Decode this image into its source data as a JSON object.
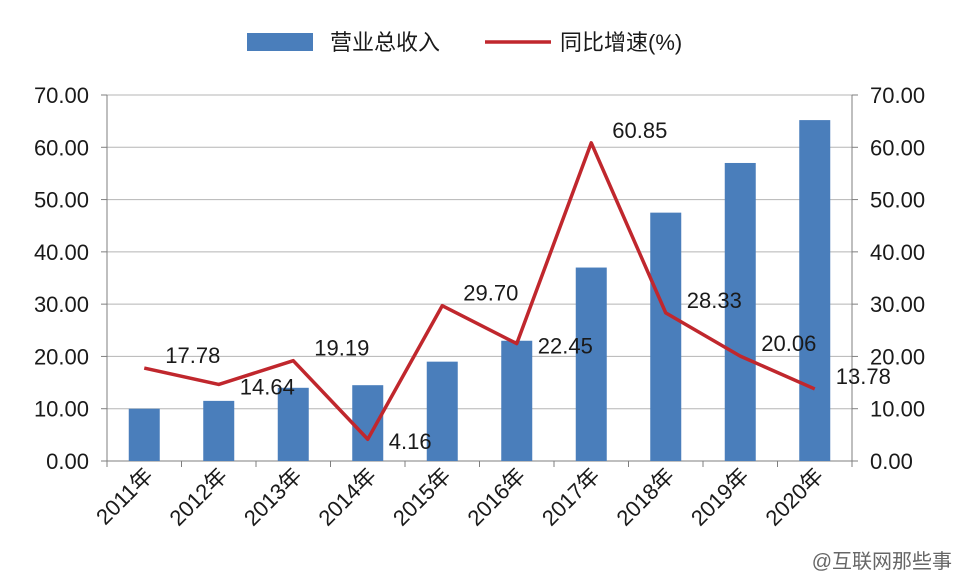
{
  "chart_data": {
    "type": "bar+line",
    "categories": [
      "2011年",
      "2012年",
      "2013年",
      "2014年",
      "2015年",
      "2016年",
      "2017年",
      "2018年",
      "2019年",
      "2020年"
    ],
    "series": [
      {
        "name": "营业总收入",
        "type": "bar",
        "axis": "left",
        "color": "#4a7ebb",
        "values": [
          10.0,
          11.5,
          14.0,
          14.5,
          19.0,
          23.0,
          37.0,
          47.5,
          57.0,
          65.2
        ]
      },
      {
        "name": "同比增速(%)",
        "type": "line",
        "axis": "right",
        "color": "#c0272d",
        "values": [
          17.78,
          14.64,
          19.19,
          4.16,
          29.7,
          22.45,
          60.85,
          28.33,
          20.06,
          13.78
        ],
        "labels": [
          "17.78",
          "14.64",
          "19.19",
          "4.16",
          "29.70",
          "22.45",
          "60.85",
          "28.33",
          "20.06",
          "13.78"
        ]
      }
    ],
    "y_left": {
      "min": 0,
      "max": 70,
      "ticks": [
        "0.00",
        "10.00",
        "20.00",
        "30.00",
        "40.00",
        "50.00",
        "60.00",
        "70.00"
      ]
    },
    "y_right": {
      "min": 0,
      "max": 70,
      "ticks": [
        "0.00",
        "10.00",
        "20.00",
        "30.00",
        "40.00",
        "50.00",
        "60.00",
        "70.00"
      ]
    },
    "grid": true,
    "legend": "top-center",
    "title": "",
    "xlabel": "",
    "ylabel": ""
  },
  "watermark": "@互联网那些事"
}
